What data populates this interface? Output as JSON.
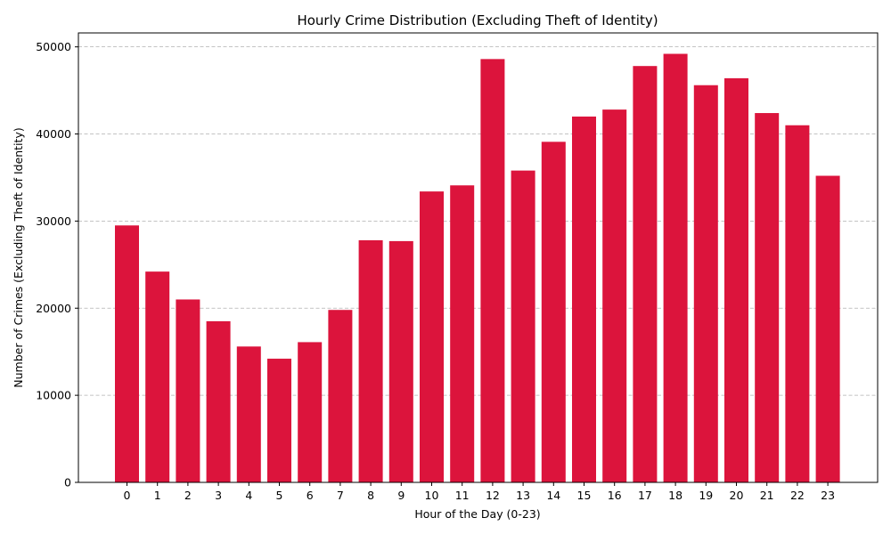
{
  "chart_data": {
    "type": "bar",
    "title": "Hourly Crime Distribution (Excluding Theft of Identity)",
    "xlabel": "Hour of the Day (0-23)",
    "ylabel": "Number of Crimes (Excluding Theft of Identity)",
    "categories": [
      "0",
      "1",
      "2",
      "3",
      "4",
      "5",
      "6",
      "7",
      "8",
      "9",
      "10",
      "11",
      "12",
      "13",
      "14",
      "15",
      "16",
      "17",
      "18",
      "19",
      "20",
      "21",
      "22",
      "23"
    ],
    "values": [
      29500,
      24200,
      21000,
      18500,
      15600,
      14200,
      16100,
      19800,
      27800,
      27700,
      33400,
      34100,
      48600,
      35800,
      39100,
      42000,
      42800,
      47800,
      49200,
      45600,
      46400,
      42400,
      41000,
      35200
    ],
    "ylim": [
      0,
      51600
    ],
    "yticks": [
      0,
      10000,
      20000,
      30000,
      40000,
      50000
    ],
    "bar_color": "#dc143c",
    "grid": "y-dashed",
    "legend": "none"
  }
}
